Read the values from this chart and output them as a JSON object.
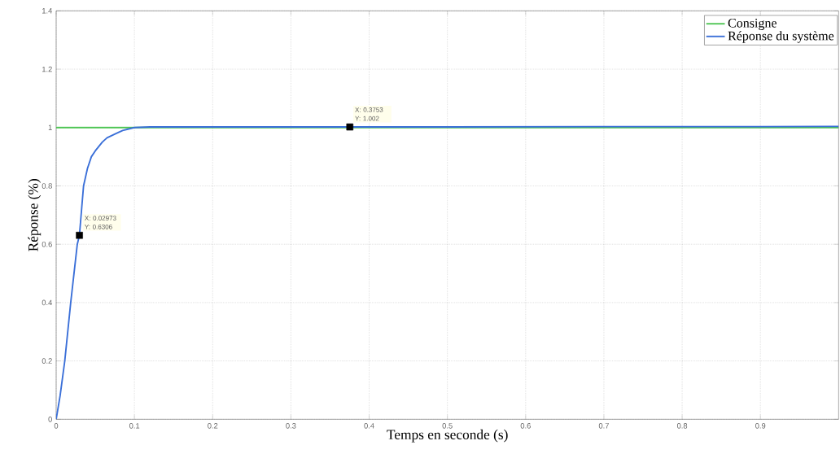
{
  "chart_data": {
    "type": "line",
    "xlabel": "Temps en seconde (s)",
    "ylabel": "Réponse (%)",
    "series": [
      {
        "name": "Consigne",
        "color": "#4cc552",
        "x": [
          0,
          1
        ],
        "values": [
          1,
          1
        ]
      },
      {
        "name": "Réponse du système",
        "color": "#3a6fd8",
        "x": [
          0,
          0.005,
          0.011,
          0.0186,
          0.027,
          0.02973,
          0.035,
          0.04,
          0.045,
          0.05,
          0.059,
          0.065,
          0.077,
          0.085,
          0.1,
          0.12,
          0.2,
          0.3,
          0.3753,
          0.5,
          0.7,
          0.9,
          1.0
        ],
        "values": [
          0,
          0.08,
          0.2,
          0.4,
          0.6,
          0.6306,
          0.8,
          0.86,
          0.9,
          0.92,
          0.95,
          0.965,
          0.98,
          0.99,
          1.0,
          1.002,
          1.002,
          1.002,
          1.002,
          1.002,
          1.003,
          1.003,
          1.004
        ]
      }
    ],
    "xlim": [
      0,
      1
    ],
    "ylim": [
      0,
      1.4
    ],
    "xticks": [
      0,
      0.1,
      0.2,
      0.3,
      0.4,
      0.5,
      0.6,
      0.7,
      0.8,
      0.9
    ],
    "yticks": [
      0,
      0.2,
      0.4,
      0.6,
      0.8,
      1,
      1.2,
      1.4
    ],
    "annotations": [
      {
        "text": "X: 0.02973 Y: 0.6306",
        "x": 0.02973,
        "y": 0.6306
      },
      {
        "text": "X: 0.3753 Y: 1.002",
        "x": 0.3753,
        "y": 1.002
      }
    ],
    "grid": true,
    "legend": "top right",
    "line_style": "solid",
    "marker": "none"
  }
}
